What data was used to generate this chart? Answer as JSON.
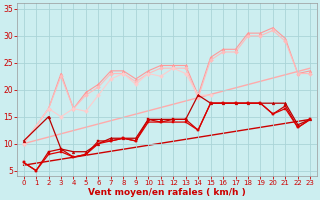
{
  "background_color": "#cceef0",
  "grid_color": "#aad4d8",
  "xlabel": "Vent moyen/en rafales ( km/h )",
  "xlabel_color": "#cc0000",
  "tick_color": "#cc0000",
  "ylim": [
    4,
    36
  ],
  "xlim": [
    -0.5,
    23.5
  ],
  "yticks": [
    5,
    10,
    15,
    20,
    25,
    30,
    35
  ],
  "xticks": [
    0,
    1,
    2,
    3,
    4,
    5,
    6,
    7,
    8,
    9,
    10,
    11,
    12,
    13,
    14,
    15,
    16,
    17,
    18,
    19,
    20,
    21,
    22,
    23
  ],
  "series": [
    {
      "x": [
        0,
        23
      ],
      "y": [
        10.0,
        24.0
      ],
      "color": "#ffaaaa",
      "lw": 1.0,
      "marker": null,
      "ms": 0,
      "zorder": 1,
      "linestyle": "-"
    },
    {
      "x": [
        0,
        23
      ],
      "y": [
        6.0,
        14.5
      ],
      "color": "#cc0000",
      "lw": 1.0,
      "marker": null,
      "ms": 0,
      "zorder": 1,
      "linestyle": "-"
    },
    {
      "x": [
        0,
        2,
        3,
        4,
        5,
        6,
        7,
        8,
        9,
        10,
        11,
        12,
        13,
        14,
        15,
        16,
        17,
        18,
        19,
        20,
        21,
        22,
        23
      ],
      "y": [
        10.0,
        16.5,
        23.0,
        16.5,
        19.5,
        21.0,
        23.5,
        23.5,
        22.0,
        23.5,
        24.5,
        24.5,
        24.5,
        19.0,
        26.0,
        27.5,
        27.5,
        30.5,
        30.5,
        31.5,
        29.5,
        23.0,
        23.5
      ],
      "color": "#ff9999",
      "lw": 0.8,
      "marker": "^",
      "ms": 2.0,
      "zorder": 3,
      "linestyle": "-"
    },
    {
      "x": [
        0,
        2,
        3,
        4,
        5,
        6,
        7,
        8,
        9,
        10,
        11,
        12,
        13,
        14,
        15,
        16,
        17,
        18,
        19,
        20,
        21,
        22,
        23
      ],
      "y": [
        10.0,
        16.5,
        22.5,
        16.5,
        19.0,
        20.5,
        23.0,
        23.0,
        21.5,
        23.0,
        24.0,
        24.0,
        24.0,
        18.5,
        25.5,
        27.0,
        27.0,
        30.0,
        30.0,
        31.0,
        29.0,
        23.0,
        23.0
      ],
      "color": "#ffbbbb",
      "lw": 0.8,
      "marker": "D",
      "ms": 2.0,
      "zorder": 3,
      "linestyle": "-"
    },
    {
      "x": [
        0,
        2,
        3,
        4,
        5,
        6,
        7,
        8,
        9,
        10,
        11,
        12,
        13,
        14,
        15
      ],
      "y": [
        10.0,
        16.5,
        15.0,
        16.5,
        16.0,
        19.0,
        22.0,
        23.0,
        21.0,
        23.0,
        22.5,
        24.0,
        23.0,
        19.0,
        19.0
      ],
      "color": "#ffcccc",
      "lw": 0.8,
      "marker": "D",
      "ms": 2.0,
      "zorder": 3,
      "linestyle": "-"
    },
    {
      "x": [
        0,
        1,
        2,
        3,
        4,
        5,
        6,
        7,
        8,
        9,
        10,
        11,
        12,
        13,
        14,
        15,
        16,
        17,
        18,
        19,
        20,
        21,
        22,
        23
      ],
      "y": [
        6.5,
        5.0,
        8.5,
        9.0,
        7.5,
        8.0,
        10.5,
        10.5,
        11.0,
        10.5,
        14.5,
        14.0,
        14.5,
        14.5,
        12.5,
        17.5,
        17.5,
        17.5,
        17.5,
        17.5,
        15.5,
        17.0,
        13.0,
        14.5
      ],
      "color": "#cc0000",
      "lw": 0.9,
      "marker": "s",
      "ms": 2.0,
      "zorder": 5,
      "linestyle": "-"
    },
    {
      "x": [
        0,
        1,
        2,
        3,
        4,
        5,
        6,
        7,
        8,
        9,
        10,
        11,
        12,
        13,
        14,
        15,
        16,
        17,
        18,
        19,
        20,
        21,
        22,
        23
      ],
      "y": [
        6.5,
        5.0,
        8.0,
        8.5,
        7.5,
        8.0,
        10.0,
        10.5,
        11.0,
        10.5,
        14.0,
        14.0,
        14.0,
        14.0,
        12.5,
        17.5,
        17.5,
        17.5,
        17.5,
        17.5,
        15.5,
        16.5,
        13.0,
        14.5
      ],
      "color": "#dd0000",
      "lw": 0.9,
      "marker": "s",
      "ms": 2.0,
      "zorder": 5,
      "linestyle": "-"
    },
    {
      "x": [
        0,
        2,
        3,
        4,
        5,
        6,
        7,
        8,
        9,
        10,
        11,
        12,
        13,
        14,
        15,
        16,
        17,
        18,
        19,
        20,
        21,
        22,
        23
      ],
      "y": [
        10.5,
        15.0,
        9.0,
        8.5,
        8.5,
        10.0,
        11.0,
        11.0,
        11.0,
        14.5,
        14.5,
        14.5,
        14.5,
        19.0,
        17.5,
        17.5,
        17.5,
        17.5,
        17.5,
        17.5,
        17.5,
        13.5,
        14.5
      ],
      "color": "#bb0000",
      "lw": 0.9,
      "marker": "^",
      "ms": 2.0,
      "zorder": 4,
      "linestyle": "-"
    }
  ]
}
